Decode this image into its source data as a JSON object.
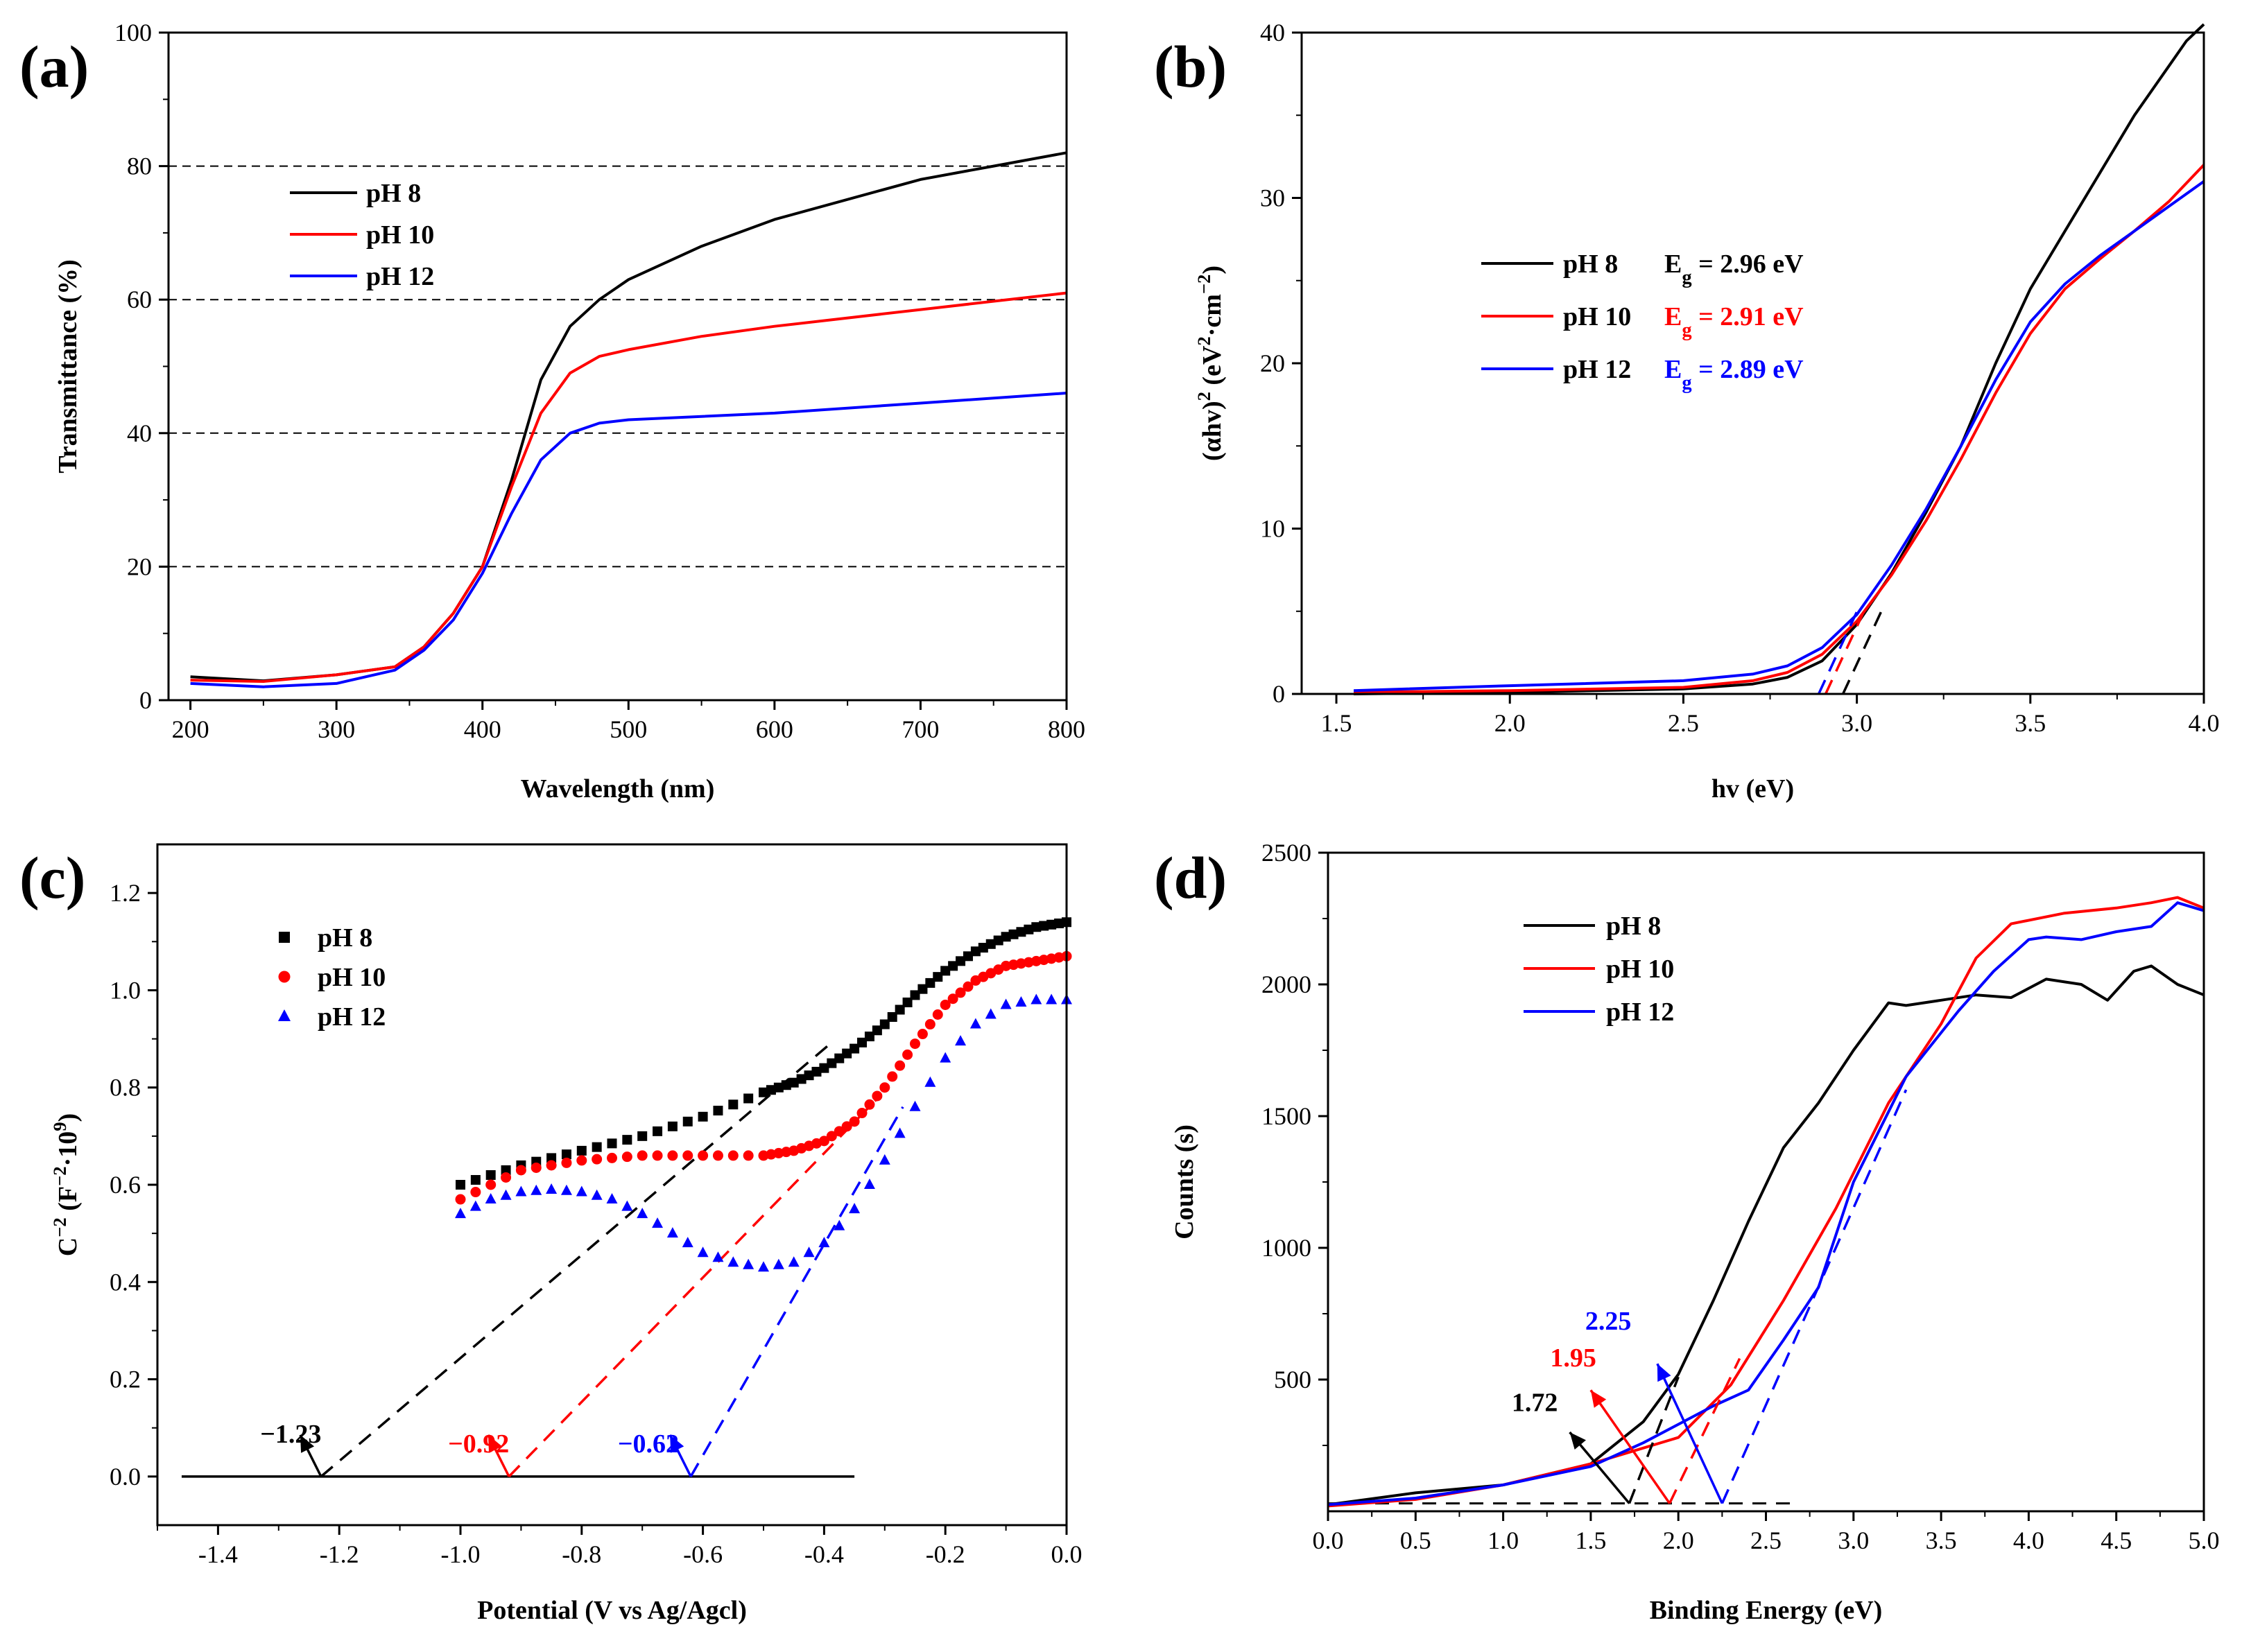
{
  "chart_data": [
    {
      "panel_label": "(a)",
      "type": "line",
      "xlabel": "Wavelength (nm)",
      "ylabel": "Transmittance (%)",
      "xlim": [
        185,
        800
      ],
      "ylim": [
        0,
        100
      ],
      "xticks": [
        "200",
        "300",
        "400",
        "500",
        "600",
        "700",
        "800"
      ],
      "yticks": [
        "0",
        "20",
        "40",
        "60",
        "80",
        "100"
      ],
      "gridlines_y": [
        20,
        40,
        60,
        80
      ],
      "legend": [
        "pH 8",
        "pH 10",
        "pH 12"
      ],
      "series": [
        {
          "name": "pH 8",
          "color": "#000000",
          "x": [
            200,
            250,
            300,
            340,
            360,
            380,
            400,
            420,
            440,
            460,
            480,
            500,
            550,
            600,
            700,
            750,
            800
          ],
          "y": [
            3.5,
            2.9,
            3.8,
            5,
            8,
            13,
            20,
            33,
            48,
            56,
            60,
            63,
            68,
            72,
            78,
            80,
            82
          ]
        },
        {
          "name": "pH 10",
          "color": "#ff0000",
          "x": [
            200,
            250,
            300,
            340,
            360,
            380,
            400,
            420,
            440,
            460,
            480,
            500,
            550,
            600,
            700,
            800
          ],
          "y": [
            3,
            2.8,
            3.8,
            5,
            8,
            13,
            20,
            32,
            43,
            49,
            51.5,
            52.5,
            54.5,
            56,
            58.5,
            61
          ]
        },
        {
          "name": "pH 12",
          "color": "#0000ff",
          "x": [
            200,
            250,
            300,
            340,
            360,
            380,
            400,
            420,
            440,
            460,
            480,
            500,
            550,
            600,
            700,
            800
          ],
          "y": [
            2.5,
            2,
            2.5,
            4.5,
            7.5,
            12,
            19,
            28,
            36,
            40,
            41.5,
            42,
            42.5,
            43,
            44.5,
            46
          ]
        }
      ]
    },
    {
      "panel_label": "(b)",
      "type": "line",
      "xlabel": "hv (eV)",
      "ylabel": "(αhv)2 (eV2·cm−2)",
      "xlim": [
        1.4,
        4.0
      ],
      "ylim": [
        0,
        40
      ],
      "xticks": [
        "1.5",
        "2.0",
        "2.5",
        "3.0",
        "3.5",
        "4.0"
      ],
      "yticks": [
        "0",
        "10",
        "20",
        "30",
        "40"
      ],
      "legend": [
        {
          "name": "pH 8",
          "eg_label": "Eg = 2.96 eV",
          "color": "#000000"
        },
        {
          "name": "pH 10",
          "eg_label": "Eg = 2.91 eV",
          "color": "#ff0000"
        },
        {
          "name": "pH 12",
          "eg_label": "Eg = 2.89 eV",
          "color": "#0000ff"
        }
      ],
      "bandgaps_eV": [
        2.96,
        2.91,
        2.89
      ],
      "series": [
        {
          "name": "pH 8",
          "color": "#000000",
          "x": [
            1.55,
            2.0,
            2.5,
            2.7,
            2.8,
            2.9,
            3.0,
            3.1,
            3.2,
            3.3,
            3.4,
            3.5,
            3.6,
            3.7,
            3.8,
            3.9,
            3.95,
            4.0
          ],
          "y": [
            0,
            0.1,
            0.3,
            0.6,
            1.0,
            2.0,
            4.2,
            7.3,
            11.0,
            15.0,
            20.0,
            24.5,
            28.0,
            31.5,
            35.0,
            38.0,
            39.5,
            40.5
          ]
        },
        {
          "name": "pH 10",
          "color": "#ff0000",
          "x": [
            1.55,
            2.0,
            2.5,
            2.7,
            2.8,
            2.9,
            3.0,
            3.1,
            3.2,
            3.3,
            3.4,
            3.5,
            3.6,
            3.7,
            3.8,
            3.9,
            4.0
          ],
          "y": [
            0.1,
            0.2,
            0.4,
            0.8,
            1.3,
            2.4,
            4.4,
            7.2,
            10.5,
            14.2,
            18.2,
            21.8,
            24.5,
            26.3,
            28.0,
            29.8,
            32.0
          ]
        },
        {
          "name": "pH 12",
          "color": "#0000ff",
          "x": [
            1.55,
            2.0,
            2.5,
            2.7,
            2.8,
            2.9,
            3.0,
            3.1,
            3.2,
            3.3,
            3.4,
            3.5,
            3.6,
            3.7,
            3.8,
            3.9,
            4.0
          ],
          "y": [
            0.2,
            0.5,
            0.8,
            1.2,
            1.7,
            2.8,
            4.8,
            7.8,
            11.2,
            15.0,
            19.0,
            22.5,
            24.8,
            26.5,
            28.0,
            29.5,
            31.0
          ]
        }
      ]
    },
    {
      "panel_label": "(c)",
      "type": "scatter",
      "xlabel": "Potential (V vs Ag/Agcl)",
      "ylabel": "C−2 (F−2·109)",
      "xlim": [
        -1.5,
        0.0
      ],
      "ylim": [
        -0.1,
        1.3
      ],
      "xticks": [
        "-1.4",
        "-1.2",
        "-1.0",
        "-0.8",
        "-0.6",
        "-0.4",
        "-0.2",
        "0.0"
      ],
      "yticks": [
        "0.0",
        "0.2",
        "0.4",
        "0.6",
        "0.8",
        "1.0",
        "1.2"
      ],
      "legend": [
        "pH 8",
        "pH 10",
        "pH 12"
      ],
      "flatband_labels": [
        "−1.23",
        "−0.92",
        "−0.62"
      ],
      "flatband_values": [
        -1.23,
        -0.92,
        -0.62
      ],
      "series": [
        {
          "name": "pH 8",
          "color": "#000000",
          "marker": "square",
          "x": [
            -1.0,
            -0.9,
            -0.8,
            -0.7,
            -0.6,
            -0.5,
            -0.45,
            -0.4,
            -0.35,
            -0.3,
            -0.25,
            -0.2,
            -0.15,
            -0.1,
            -0.05,
            0.0
          ],
          "y": [
            0.6,
            0.64,
            0.67,
            0.7,
            0.74,
            0.79,
            0.81,
            0.84,
            0.88,
            0.93,
            0.99,
            1.04,
            1.08,
            1.11,
            1.13,
            1.14
          ]
        },
        {
          "name": "pH 10",
          "color": "#ff0000",
          "marker": "circle",
          "x": [
            -1.0,
            -0.9,
            -0.8,
            -0.7,
            -0.6,
            -0.5,
            -0.45,
            -0.4,
            -0.35,
            -0.3,
            -0.25,
            -0.2,
            -0.15,
            -0.1,
            -0.05,
            0.0
          ],
          "y": [
            0.57,
            0.63,
            0.65,
            0.66,
            0.66,
            0.66,
            0.67,
            0.69,
            0.73,
            0.8,
            0.89,
            0.97,
            1.02,
            1.05,
            1.06,
            1.07
          ]
        },
        {
          "name": "pH 12",
          "color": "#0000ff",
          "marker": "triangle",
          "x": [
            -1.0,
            -0.95,
            -0.9,
            -0.85,
            -0.8,
            -0.75,
            -0.7,
            -0.65,
            -0.6,
            -0.55,
            -0.5,
            -0.45,
            -0.4,
            -0.35,
            -0.3,
            -0.25,
            -0.2,
            -0.15,
            -0.1,
            -0.05,
            0.0
          ],
          "y": [
            0.54,
            0.57,
            0.585,
            0.59,
            0.585,
            0.57,
            0.54,
            0.5,
            0.46,
            0.44,
            0.43,
            0.44,
            0.48,
            0.55,
            0.65,
            0.76,
            0.86,
            0.93,
            0.97,
            0.98,
            0.98
          ]
        }
      ]
    },
    {
      "panel_label": "(d)",
      "type": "line",
      "xlabel": "Binding Energy (eV)",
      "ylabel": "Counts (s)",
      "xlim": [
        0.0,
        5.0
      ],
      "ylim": [
        0,
        2500
      ],
      "xticks": [
        "0.0",
        "0.5",
        "1.0",
        "1.5",
        "2.0",
        "2.5",
        "3.0",
        "3.5",
        "4.0",
        "4.5",
        "5.0"
      ],
      "yticks": [
        "500",
        "1000",
        "1500",
        "2000",
        "2500"
      ],
      "legend": [
        "pH 8",
        "pH 10",
        "pH 12"
      ],
      "edge_labels": [
        "1.72",
        "1.95",
        "2.25"
      ],
      "edge_values": [
        1.72,
        1.95,
        2.25
      ],
      "series": [
        {
          "name": "pH 8",
          "color": "#000000",
          "x": [
            0,
            0.5,
            1.0,
            1.5,
            1.8,
            2.0,
            2.2,
            2.4,
            2.6,
            2.8,
            3.0,
            3.2,
            3.3,
            3.5,
            3.7,
            3.9,
            4.1,
            4.3,
            4.45,
            4.6,
            4.7,
            4.85,
            5.0
          ],
          "y": [
            25,
            70,
            100,
            180,
            340,
            520,
            800,
            1100,
            1380,
            1550,
            1750,
            1930,
            1920,
            1940,
            1960,
            1950,
            2020,
            2000,
            1940,
            2050,
            2070,
            2000,
            1960
          ]
        },
        {
          "name": "pH 10",
          "color": "#ff0000",
          "x": [
            0,
            0.5,
            1.0,
            1.5,
            2.0,
            2.3,
            2.6,
            2.9,
            3.2,
            3.5,
            3.7,
            3.9,
            4.2,
            4.5,
            4.7,
            4.85,
            5.0
          ],
          "y": [
            20,
            45,
            100,
            180,
            280,
            480,
            800,
            1150,
            1550,
            1850,
            2100,
            2230,
            2270,
            2290,
            2310,
            2330,
            2290
          ]
        },
        {
          "name": "pH 12",
          "color": "#0000ff",
          "x": [
            0,
            0.5,
            1.0,
            1.5,
            1.8,
            2.0,
            2.2,
            2.4,
            2.6,
            2.8,
            3.0,
            3.3,
            3.6,
            3.8,
            4.0,
            4.1,
            4.3,
            4.5,
            4.7,
            4.85,
            5.0
          ],
          "y": [
            25,
            50,
            100,
            170,
            260,
            330,
            400,
            460,
            650,
            850,
            1250,
            1650,
            1900,
            2050,
            2170,
            2180,
            2170,
            2200,
            2220,
            2310,
            2280
          ]
        }
      ]
    }
  ]
}
